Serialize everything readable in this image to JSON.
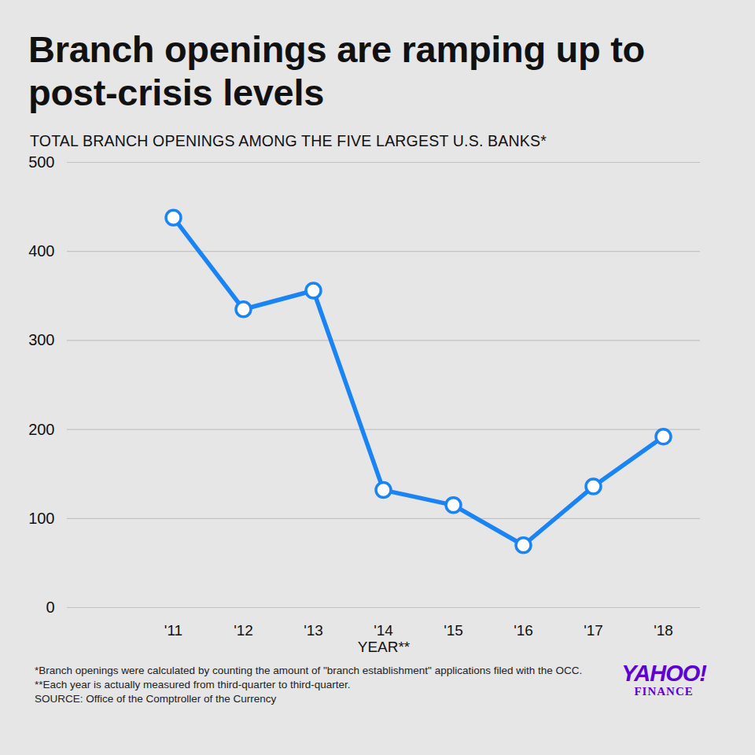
{
  "chart_data": {
    "type": "line",
    "title": "Branch openings are ramping up to post-crisis levels",
    "subtitle": "TOTAL BRANCH OPENINGS AMONG THE FIVE LARGEST U.S. BANKS*",
    "x_label": "YEAR**",
    "categories": [
      "'11",
      "'12",
      "'13",
      "'14",
      "'15",
      "'16",
      "'17",
      "'18"
    ],
    "values": [
      438,
      335,
      356,
      132,
      115,
      70,
      136,
      192
    ],
    "color": "#1a84f5",
    "marker": "circle",
    "ylim": [
      0,
      500
    ],
    "yticks": [
      0,
      100,
      200,
      300,
      400,
      500
    ],
    "grid": true,
    "notes": [
      "*Branch openings were calculated by counting the amount of \"branch establishment\" applications filed with the OCC. **Each year is actually measured from third-quarter to third-quarter.",
      "SOURCE: Office of the Comptroller of the Currency"
    ],
    "branding": [
      "YAHOO!",
      "FINANCE"
    ]
  }
}
